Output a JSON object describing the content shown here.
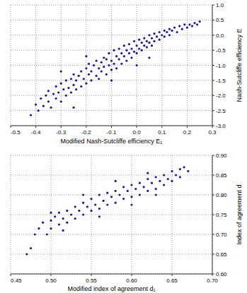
{
  "chart_data": [
    {
      "type": "scatter",
      "x_label": "Modified Nash-Sutcliffe efficiency E₁",
      "y_label": "Nash-Sutcliffe efficiency E",
      "color": "#1c1c8a",
      "marker": "circle",
      "grid": true,
      "xlim": [
        -0.5,
        0.3
      ],
      "xticks": [
        -0.5,
        -0.4,
        -0.3,
        -0.2,
        -0.1,
        {
          "value": 0,
          "label": "0.0"
        },
        0.1,
        0.2,
        0.3
      ],
      "ylim": [
        -3,
        1
      ],
      "yticks": [
        {
          "value": 1,
          "label": "1.0"
        },
        0.5,
        {
          "value": 0,
          "label": "0.0"
        },
        -0.5,
        {
          "value": -1,
          "label": "-1.0"
        },
        -1.5,
        {
          "value": -2,
          "label": "-2.0"
        },
        -2.5,
        {
          "value": -3,
          "label": "-3.0"
        }
      ],
      "x": [
        -0.42,
        -0.4,
        -0.39,
        -0.38,
        -0.37,
        -0.36,
        -0.35,
        -0.35,
        -0.34,
        -0.33,
        -0.32,
        -0.32,
        -0.31,
        -0.3,
        -0.3,
        -0.29,
        -0.28,
        -0.28,
        -0.27,
        -0.26,
        -0.26,
        -0.25,
        -0.25,
        -0.24,
        -0.24,
        -0.23,
        -0.22,
        -0.22,
        -0.21,
        -0.2,
        -0.2,
        -0.19,
        -0.19,
        -0.18,
        -0.18,
        -0.17,
        -0.16,
        -0.16,
        -0.15,
        -0.15,
        -0.14,
        -0.14,
        -0.13,
        -0.13,
        -0.12,
        -0.12,
        -0.11,
        -0.11,
        -0.1,
        -0.1,
        -0.09,
        -0.09,
        -0.08,
        -0.08,
        -0.07,
        -0.07,
        -0.06,
        -0.06,
        -0.05,
        -0.05,
        -0.04,
        -0.04,
        -0.03,
        -0.03,
        -0.02,
        -0.02,
        -0.01,
        -0.01,
        0.0,
        0.0,
        0.01,
        0.01,
        0.02,
        0.02,
        0.03,
        0.03,
        0.04,
        0.04,
        0.05,
        0.05,
        0.06,
        0.06,
        0.07,
        0.07,
        0.08,
        0.09,
        0.09,
        0.1,
        0.11,
        0.11,
        0.12,
        0.13,
        0.13,
        0.14,
        0.15,
        0.16,
        0.17,
        0.18,
        0.19,
        0.2,
        0.21,
        0.22,
        0.23,
        0.24,
        0.25,
        -0.3,
        -0.2,
        -0.1,
        0.0,
        0.05,
        -0.25
      ],
      "values": [
        -2.65,
        -2.3,
        -2.5,
        -2.1,
        -2.35,
        -2.0,
        -2.2,
        -1.85,
        -2.4,
        -1.95,
        -2.1,
        -1.7,
        -1.9,
        -2.2,
        -1.6,
        -1.8,
        -2.0,
        -1.5,
        -1.75,
        -1.9,
        -1.45,
        -1.65,
        -1.3,
        -1.8,
        -1.5,
        -1.35,
        -1.7,
        -1.2,
        -1.45,
        -1.6,
        -1.1,
        -1.3,
        -0.95,
        -1.5,
        -1.2,
        -1.0,
        -1.35,
        -0.85,
        -1.1,
        -1.45,
        -0.9,
        -1.2,
        -0.75,
        -1.05,
        -1.3,
        -0.8,
        -1.0,
        -0.6,
        -1.15,
        -0.85,
        -0.5,
        -0.95,
        -0.7,
        -1.1,
        -0.45,
        -0.8,
        -0.6,
        -0.95,
        -0.35,
        -0.7,
        -0.5,
        -0.85,
        -0.3,
        -0.6,
        -0.45,
        -0.75,
        -0.2,
        -0.55,
        -0.35,
        -0.6,
        -0.15,
        -0.45,
        -0.25,
        -0.5,
        -0.1,
        -0.35,
        -0.2,
        -0.4,
        0.0,
        -0.25,
        -0.1,
        -0.35,
        0.05,
        -0.2,
        -0.05,
        0.1,
        -0.15,
        0.0,
        0.15,
        -0.05,
        0.1,
        0.2,
        0.0,
        0.15,
        0.25,
        0.1,
        0.3,
        0.2,
        0.35,
        0.25,
        0.35,
        0.3,
        0.4,
        0.35,
        0.45,
        -1.2,
        -0.7,
        -1.5,
        -1.0,
        -0.75,
        -2.4
      ]
    },
    {
      "type": "scatter",
      "x_label": "Modified index of agreement d₁",
      "y_label": "Index of agreement d",
      "color": "#1c1c8a",
      "marker": "circle",
      "grid": true,
      "xlim": [
        0.45,
        0.7
      ],
      "xticks": [
        0.45,
        {
          "value": 0.5,
          "label": "0.50"
        },
        0.55,
        {
          "value": 0.6,
          "label": "0.60"
        },
        0.65,
        {
          "value": 0.7,
          "label": "0.70"
        }
      ],
      "ylim": [
        0.6,
        0.9
      ],
      "yticks": [
        {
          "value": 0.6,
          "label": "0.60"
        },
        0.65,
        {
          "value": 0.7,
          "label": "0.70"
        },
        0.75,
        {
          "value": 0.8,
          "label": "0.80"
        },
        0.85,
        {
          "value": 0.9,
          "label": "0.90"
        }
      ],
      "x": [
        0.47,
        0.475,
        0.48,
        0.485,
        0.49,
        0.495,
        0.5,
        0.5,
        0.505,
        0.51,
        0.51,
        0.515,
        0.52,
        0.52,
        0.525,
        0.53,
        0.53,
        0.535,
        0.54,
        0.54,
        0.545,
        0.55,
        0.55,
        0.555,
        0.56,
        0.56,
        0.565,
        0.57,
        0.57,
        0.575,
        0.58,
        0.58,
        0.585,
        0.59,
        0.59,
        0.595,
        0.6,
        0.6,
        0.605,
        0.61,
        0.61,
        0.615,
        0.62,
        0.62,
        0.625,
        0.63,
        0.63,
        0.635,
        0.64,
        0.64,
        0.645,
        0.65,
        0.65,
        0.655,
        0.66,
        0.66,
        0.665,
        0.67,
        0.515,
        0.56,
        0.6,
        0.63,
        0.54,
        0.58,
        0.62,
        0.5
      ],
      "values": [
        0.65,
        0.665,
        0.7,
        0.715,
        0.73,
        0.7,
        0.735,
        0.715,
        0.745,
        0.725,
        0.755,
        0.74,
        0.76,
        0.73,
        0.75,
        0.77,
        0.74,
        0.76,
        0.78,
        0.75,
        0.77,
        0.79,
        0.76,
        0.775,
        0.8,
        0.765,
        0.785,
        0.805,
        0.775,
        0.795,
        0.81,
        0.78,
        0.8,
        0.82,
        0.79,
        0.81,
        0.825,
        0.795,
        0.815,
        0.83,
        0.8,
        0.82,
        0.84,
        0.81,
        0.83,
        0.845,
        0.815,
        0.835,
        0.85,
        0.825,
        0.84,
        0.86,
        0.835,
        0.85,
        0.865,
        0.845,
        0.87,
        0.86,
        0.71,
        0.745,
        0.775,
        0.8,
        0.8,
        0.835,
        0.855,
        0.755
      ]
    }
  ]
}
